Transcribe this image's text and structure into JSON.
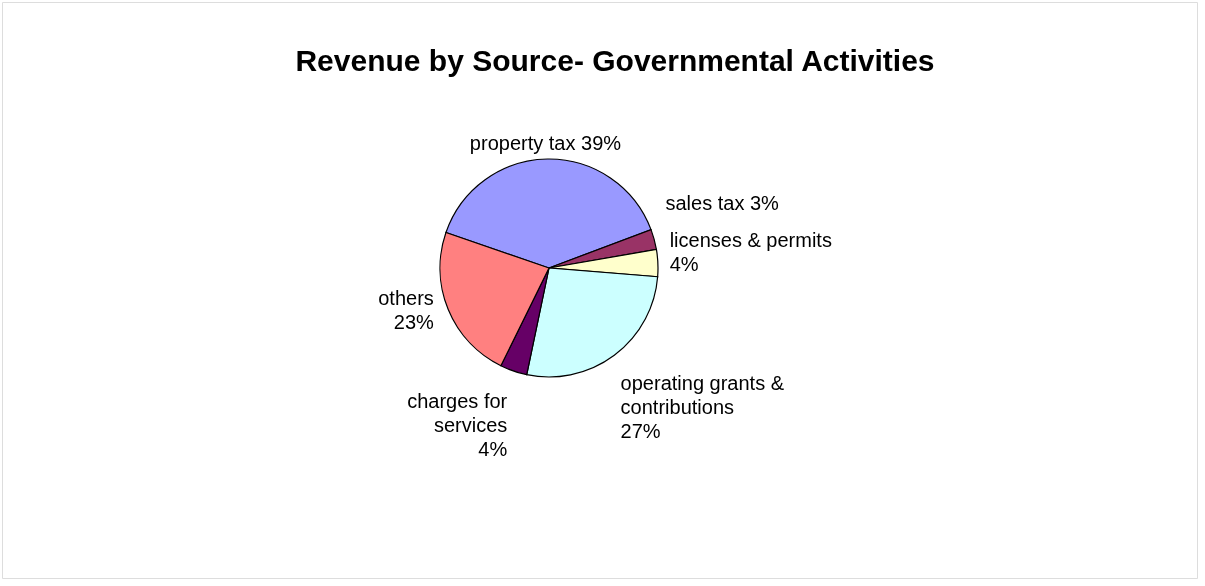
{
  "chart_data": {
    "type": "pie",
    "title": "Revenue by Source- Governmental Activities",
    "categories": [
      "property tax",
      "sales tax ",
      "licenses & permits",
      "operating grants & contributions",
      "charges for services",
      "others"
    ],
    "values": [
      39,
      3,
      4,
      27,
      4,
      23
    ],
    "colors": [
      "#9999ff",
      "#993366",
      "#ffffcc",
      "#ccffff",
      "#660066",
      "#ff8080"
    ],
    "value_labels": [
      "39%",
      "3%",
      "4%",
      "27%",
      "4%",
      "23%"
    ],
    "legend": false
  }
}
